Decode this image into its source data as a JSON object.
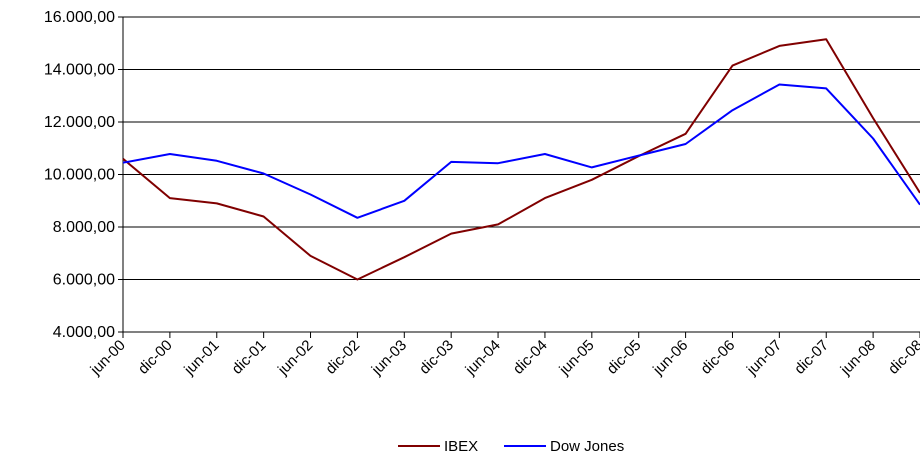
{
  "chart_data": {
    "type": "line",
    "title": "",
    "xlabel": "",
    "ylabel": "",
    "categories": [
      "jun-00",
      "dic-00",
      "jun-01",
      "dic-01",
      "jun-02",
      "dic-02",
      "jun-03",
      "dic-03",
      "jun-04",
      "dic-04",
      "jun-05",
      "dic-05",
      "jun-06",
      "dic-06",
      "jun-07",
      "dic-07",
      "jun-08",
      "dic-08"
    ],
    "ylim": [
      4000,
      16000
    ],
    "yticks": [
      4000,
      6000,
      8000,
      10000,
      12000,
      14000,
      16000
    ],
    "ytick_labels": [
      "4.000,00",
      "6.000,00",
      "8.000,00",
      "10.000,00",
      "12.000,00",
      "14.000,00",
      "16.000,00"
    ],
    "grid": true,
    "legend": "bottom",
    "series": [
      {
        "name": "IBEX",
        "color": "#800000",
        "values": [
          10600,
          9100,
          8900,
          8400,
          6900,
          6000,
          6850,
          7750,
          8100,
          9100,
          9800,
          10700,
          11550,
          14150,
          14900,
          15150,
          12150,
          9300
        ]
      },
      {
        "name": "Dow Jones",
        "color": "#0000ff",
        "values": [
          10450,
          10780,
          10520,
          10040,
          9240,
          8350,
          9000,
          10480,
          10430,
          10780,
          10270,
          10720,
          11160,
          12450,
          13430,
          13280,
          11370,
          8850
        ]
      }
    ]
  }
}
